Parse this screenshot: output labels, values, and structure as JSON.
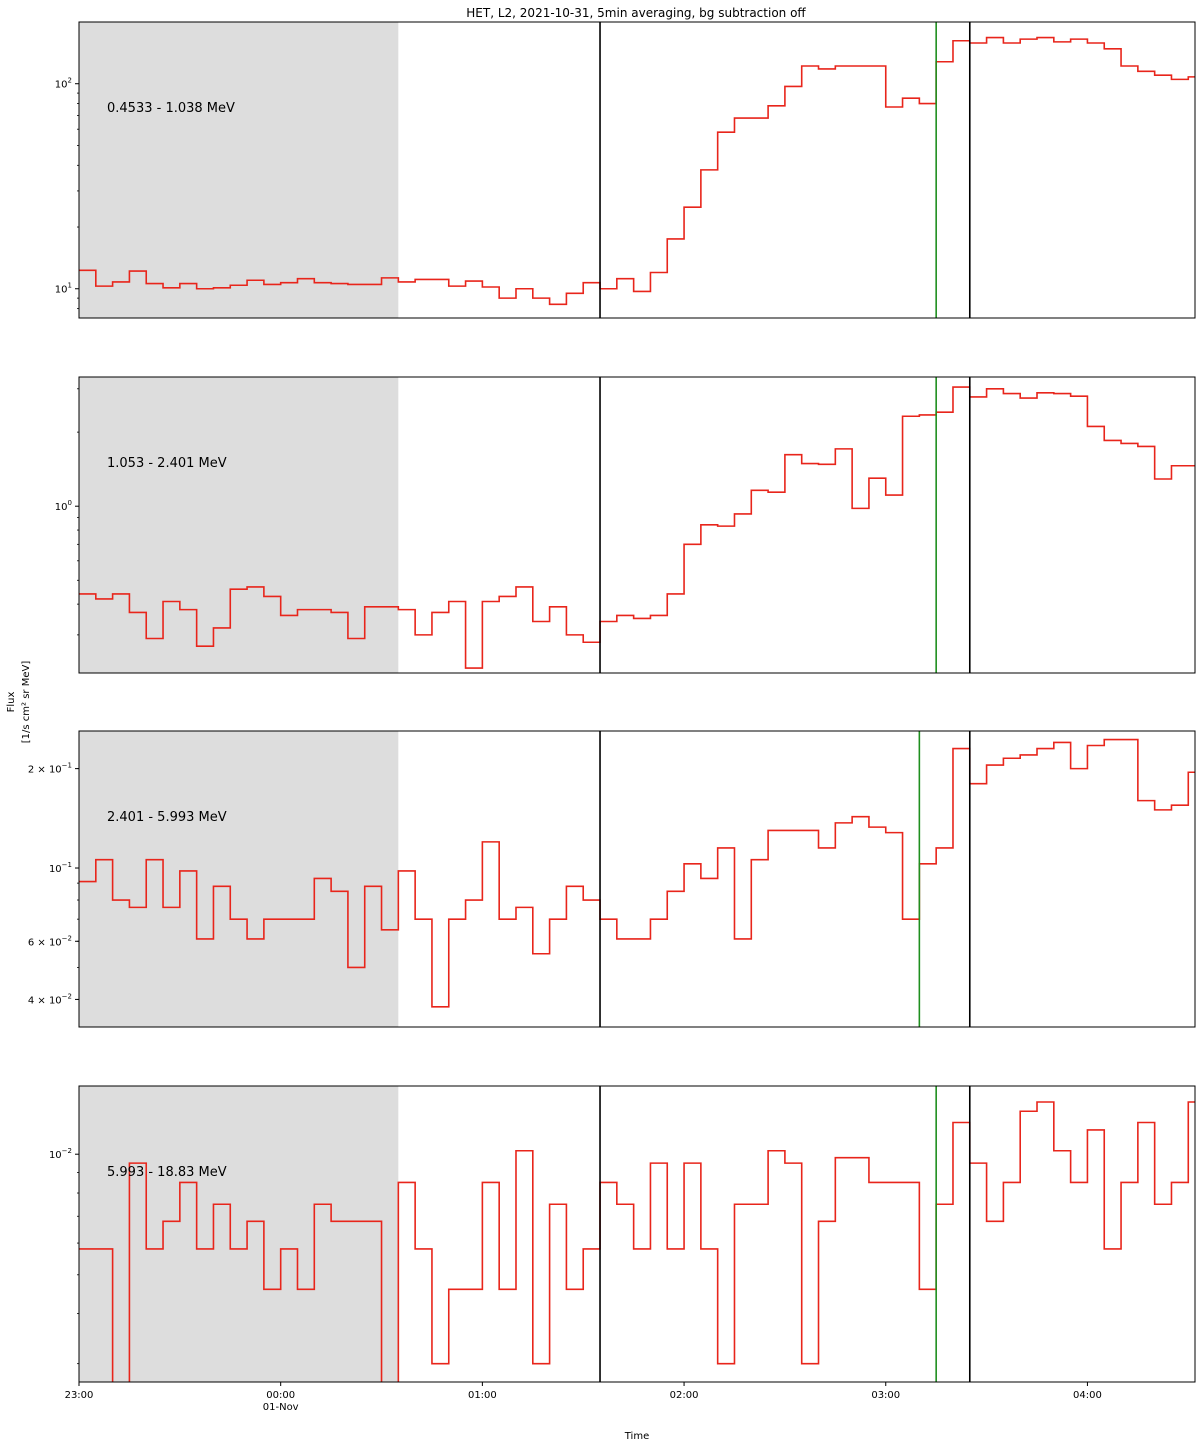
{
  "chart_data": {
    "type": "line",
    "step": true,
    "title": "HET, L2, 2021-10-31, 5min averaging, bg subtraction off",
    "xlabel": "Time",
    "ylabel_line1": "Flux",
    "ylabel_line2": "[1/s cm² sr MeV]",
    "x_start": "2021-10-31T23:00",
    "x_end": "2021-11-01T04:32",
    "x_ticks": [
      {
        "time": "2021-10-31T23:00",
        "label": "23:00",
        "sublabel": ""
      },
      {
        "time": "2021-11-01T00:00",
        "label": "00:00",
        "sublabel": "01-Nov"
      },
      {
        "time": "2021-11-01T01:00",
        "label": "01:00",
        "sublabel": ""
      },
      {
        "time": "2021-11-01T02:00",
        "label": "02:00",
        "sublabel": ""
      },
      {
        "time": "2021-11-01T03:00",
        "label": "03:00",
        "sublabel": ""
      },
      {
        "time": "2021-11-01T04:00",
        "label": "04:00",
        "sublabel": ""
      }
    ],
    "y_scale": "log",
    "line_color": "#e8251b",
    "shade_color": "#dddddd",
    "event_line_color": "#1f8f1f",
    "window_line_color": "#000000",
    "x_step_minutes": 5,
    "panels": [
      {
        "label": "0.4533 - 1.038 MeV",
        "ylim": [
          7.2,
          200
        ],
        "y_ticks": [
          {
            "value": 10,
            "base": "10",
            "exp": "1",
            "mant": ""
          },
          {
            "value": 100,
            "base": "10",
            "exp": "2",
            "mant": ""
          }
        ],
        "shade_end": "2021-11-01T00:35",
        "event_line": "2021-11-01T03:15",
        "window_lines": [
          "2021-11-01T01:35",
          "2021-11-01T03:25"
        ],
        "values": [
          12.3,
          10.3,
          10.8,
          12.2,
          10.6,
          10.1,
          10.6,
          10.0,
          10.1,
          10.4,
          11.0,
          10.5,
          10.7,
          11.2,
          10.7,
          10.6,
          10.5,
          10.5,
          11.3,
          10.8,
          11.1,
          11.1,
          10.3,
          10.9,
          10.2,
          9.0,
          10.0,
          9.0,
          8.4,
          9.5,
          10.7,
          10.0,
          11.2,
          9.7,
          12.0,
          17.5,
          25.0,
          38.0,
          58.0,
          68.0,
          68.0,
          78.0,
          97.0,
          122.0,
          118.0,
          122.0,
          122.0,
          122.0,
          77.0,
          85.0,
          80.0,
          128.0,
          162.0,
          158.0,
          168.0,
          158.0,
          165.0,
          168.0,
          160.0,
          165.0,
          158.0,
          148.0,
          122.0,
          115.0,
          110.0,
          105.0,
          108.0,
          108.0
        ]
      },
      {
        "label": "1.053 - 2.401 MeV",
        "ylim": [
          0.21,
          3.35
        ],
        "y_ticks": [
          {
            "value": 1,
            "base": "10",
            "exp": "0",
            "mant": ""
          }
        ],
        "shade_end": "2021-11-01T00:35",
        "event_line": "2021-11-01T03:15",
        "window_lines": [
          "2021-11-01T01:35",
          "2021-11-01T03:25"
        ],
        "values": [
          0.44,
          0.42,
          0.44,
          0.37,
          0.29,
          0.41,
          0.38,
          0.27,
          0.32,
          0.46,
          0.47,
          0.43,
          0.36,
          0.38,
          0.38,
          0.37,
          0.29,
          0.39,
          0.39,
          0.38,
          0.3,
          0.37,
          0.41,
          0.22,
          0.41,
          0.43,
          0.47,
          0.34,
          0.39,
          0.3,
          0.28,
          0.34,
          0.36,
          0.35,
          0.36,
          0.44,
          0.7,
          0.84,
          0.83,
          0.93,
          1.16,
          1.14,
          1.62,
          1.49,
          1.48,
          1.71,
          0.98,
          1.3,
          1.11,
          2.32,
          2.35,
          2.41,
          3.05,
          2.78,
          3.0,
          2.87,
          2.75,
          2.89,
          2.87,
          2.8,
          2.11,
          1.85,
          1.8,
          1.75,
          1.29,
          1.46,
          1.46,
          1.46
        ]
      },
      {
        "label": "2.401 - 5.993 MeV",
        "ylim": [
          0.033,
          0.26
        ],
        "y_ticks": [
          {
            "value": 0.04,
            "base": "10",
            "exp": "−2",
            "mant": "4 × "
          },
          {
            "value": 0.06,
            "base": "10",
            "exp": "−2",
            "mant": "6 × "
          },
          {
            "value": 0.1,
            "base": "10",
            "exp": "−1",
            "mant": ""
          },
          {
            "value": 0.2,
            "base": "10",
            "exp": "−1",
            "mant": "2 × "
          }
        ],
        "shade_end": "2021-11-01T00:35",
        "event_line": "2021-11-01T03:10",
        "window_lines": [
          "2021-11-01T01:35",
          "2021-11-01T03:25"
        ],
        "values": [
          0.091,
          0.106,
          0.08,
          0.076,
          0.106,
          0.076,
          0.098,
          0.061,
          0.088,
          0.07,
          0.061,
          0.07,
          0.07,
          0.07,
          0.093,
          0.085,
          0.05,
          0.088,
          0.065,
          0.098,
          0.07,
          0.038,
          0.07,
          0.08,
          0.12,
          0.07,
          0.076,
          0.055,
          0.07,
          0.088,
          0.08,
          0.07,
          0.061,
          0.061,
          0.07,
          0.085,
          0.103,
          0.093,
          0.115,
          0.061,
          0.106,
          0.13,
          0.13,
          0.13,
          0.115,
          0.137,
          0.143,
          0.133,
          0.128,
          0.07,
          0.103,
          0.115,
          0.23,
          0.18,
          0.205,
          0.215,
          0.22,
          0.23,
          0.24,
          0.2,
          0.235,
          0.245,
          0.245,
          0.16,
          0.15,
          0.155,
          0.195,
          0.095
        ]
      },
      {
        "label": "5.993 - 18.83 MeV",
        "ylim": [
          0.0027,
          0.0148
        ],
        "y_ticks": [
          {
            "value": 0.01,
            "base": "10",
            "exp": "−2",
            "mant": ""
          }
        ],
        "shade_end": "2021-11-01T00:35",
        "event_line": "2021-11-01T03:15",
        "window_lines": [
          "2021-11-01T01:35",
          "2021-11-01T03:25"
        ],
        "values": [
          0.0058,
          0.0058,
          0.002,
          0.0095,
          0.0058,
          0.0068,
          0.0085,
          0.0058,
          0.0075,
          0.0058,
          0.0068,
          0.0046,
          0.0058,
          0.0046,
          0.0075,
          0.0068,
          0.0068,
          0.0068,
          0.002,
          0.0085,
          0.0058,
          0.003,
          0.0046,
          0.0046,
          0.0085,
          0.0046,
          0.0102,
          0.003,
          0.0075,
          0.0046,
          0.0058,
          0.0085,
          0.0075,
          0.0058,
          0.0095,
          0.0058,
          0.0095,
          0.0058,
          0.003,
          0.0075,
          0.0075,
          0.0102,
          0.0095,
          0.003,
          0.0068,
          0.0098,
          0.0098,
          0.0085,
          0.0085,
          0.0085,
          0.0046,
          0.0075,
          0.012,
          0.0095,
          0.0068,
          0.0085,
          0.0128,
          0.0135,
          0.0102,
          0.0085,
          0.0115,
          0.0058,
          0.0085,
          0.012,
          0.0075,
          0.0085,
          0.0135,
          0.0115
        ]
      }
    ]
  }
}
